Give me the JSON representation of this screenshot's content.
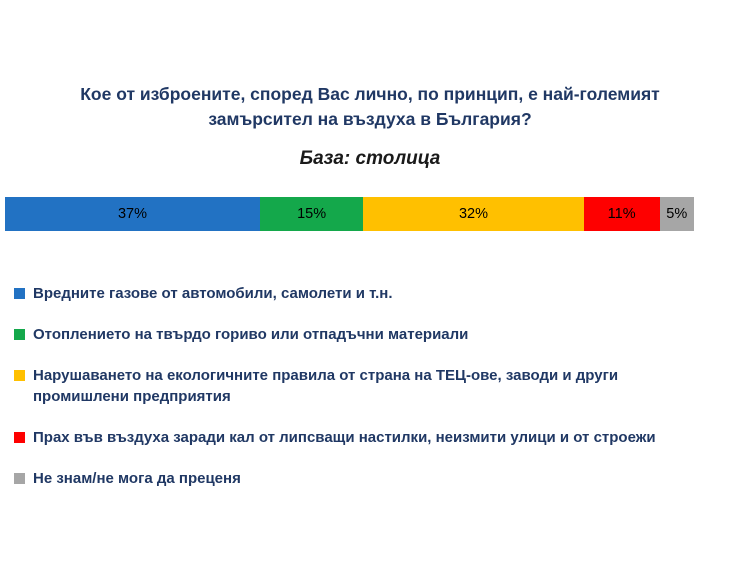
{
  "header": {
    "title": "Кое от изброените, според Вас лично, по принцип, е най-големият замърсител на въздуха в България?",
    "subtitle": "База: столица"
  },
  "chart_data": {
    "type": "bar",
    "subtype": "horizontal-stacked",
    "title": "Кое от изброените, според Вас лично, по принцип, е най-големият замърсител на въздуха в България?",
    "subtitle": "База: столица",
    "unit": "%",
    "total": 100,
    "legend_position": "bottom-left",
    "series": [
      {
        "name": "Вредните газове от автомобили, самолети и т.н.",
        "value": 37,
        "label": "37%",
        "color": "#2272c3"
      },
      {
        "name": "Отоплението на твърдо гориво или отпадъчни материали",
        "value": 15,
        "label": "15%",
        "color": "#14a84b"
      },
      {
        "name": "Нарушаването на екологичните правила от страна на ТЕЦ-ове, заводи и други промишлени предприятия",
        "value": 32,
        "label": "32%",
        "color": "#ffc000"
      },
      {
        "name": "Прах във въздуха заради кал от липсващи настилки, неизмити улици и от строежи",
        "value": 11,
        "label": "11%",
        "color": "#fe0000"
      },
      {
        "name": "Не знам/не мога да преценя",
        "value": 5,
        "label": "5%",
        "color": "#a6a6a6"
      }
    ]
  }
}
